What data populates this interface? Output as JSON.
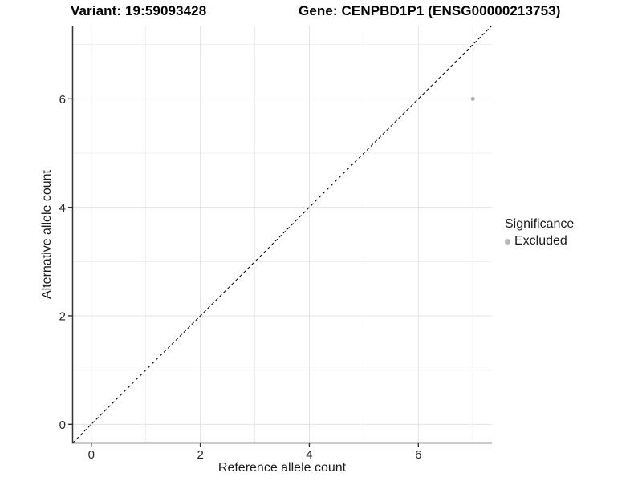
{
  "chart_data": {
    "type": "scatter",
    "title_left": "Variant: 19:59093428",
    "title_right": "Gene: CENPBD1P1 (ENSG00000213753)",
    "xlabel": "Reference allele count",
    "ylabel": "Alternative allele count",
    "xlim": [
      -0.35,
      7.35
    ],
    "ylim": [
      -0.35,
      7.35
    ],
    "x_ticks": [
      0,
      2,
      4,
      6
    ],
    "y_ticks": [
      0,
      2,
      4,
      6
    ],
    "grid_major_values": [
      0,
      2,
      4,
      6
    ],
    "grid_minor_values": [
      1,
      3,
      5,
      7
    ],
    "grid_on": true,
    "reference_line": {
      "kind": "identity",
      "slope": 1,
      "intercept": 0,
      "style": "dashed",
      "color": "#000000"
    },
    "series": [
      {
        "name": "Excluded",
        "color": "#b5b5b5",
        "points": [
          {
            "x": 7,
            "y": 6
          }
        ],
        "point_radius": 2.6
      }
    ],
    "legend": {
      "title": "Significance",
      "position": "right",
      "entries": [
        {
          "label": "Excluded",
          "color": "#b5b5b5",
          "marker": "circle"
        }
      ]
    },
    "colors": {
      "background": "#ffffff",
      "grid_major": "#e3e3e3",
      "grid_minor": "#eeeeee",
      "axis_line": "#333333",
      "tick_mark": "#333333",
      "tick_text": "#262626"
    }
  }
}
